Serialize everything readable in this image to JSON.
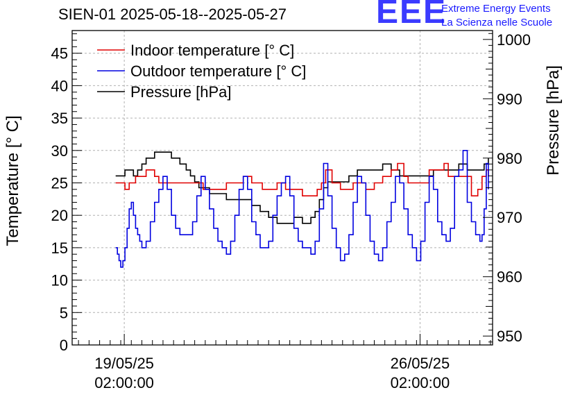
{
  "header": {
    "title": "SIEN-01 2025-05-18--2025-05-27",
    "logo_mark": "EEE",
    "logo_line1": "Extreme Energy Events",
    "logo_line2": "La Scienza nelle Scuole"
  },
  "colors": {
    "indoor": "#e00000",
    "outdoor": "#0000e0",
    "pressure": "#000000",
    "grid": "#b0b0b0",
    "logo": "#3b3bff"
  },
  "chart_data": {
    "type": "line",
    "title": "SIEN-01 2025-05-18--2025-05-27",
    "xlabel": "",
    "ylabel_left": "Temperature [° C]",
    "ylabel_right": "Pressure [hPa]",
    "x_unit": "days since 2025-05-18 00:00",
    "xlim": [
      -0.15,
      9.8
    ],
    "ylim_left": [
      0,
      48.5
    ],
    "ylim_right": [
      948.5,
      1001.5
    ],
    "left_ticks": [
      0,
      5,
      10,
      15,
      20,
      25,
      30,
      35,
      40,
      45
    ],
    "right_ticks": [
      950,
      960,
      970,
      980,
      990,
      1000
    ],
    "x_ticks": [
      {
        "x": 1.0833,
        "label_line1": "19/05/25",
        "label_line2": "02:00:00"
      },
      {
        "x": 8.0833,
        "label_line1": "26/05/25",
        "label_line2": "02:00:00"
      }
    ],
    "grid": true,
    "legend_position": "top-left",
    "series": [
      {
        "name": "Indoor temperature [° C]",
        "axis": "left",
        "x": [
          0.88,
          1.0,
          1.1,
          1.2,
          1.35,
          1.6,
          1.8,
          1.9,
          2.0,
          2.3,
          2.6,
          2.8,
          2.95,
          3.2,
          3.5,
          3.7,
          3.9,
          4.1,
          4.25,
          4.35,
          4.5,
          4.7,
          4.9,
          5.1,
          5.3,
          5.5,
          5.65,
          5.75,
          5.85,
          6.0,
          6.2,
          6.5,
          6.8,
          7.0,
          7.2,
          7.4,
          7.55,
          7.7,
          7.8,
          7.9,
          8.1,
          8.3,
          8.5,
          8.65,
          8.75,
          8.9,
          9.1,
          9.3,
          9.45,
          9.55,
          9.65,
          9.7
        ],
        "y": [
          25,
          25,
          24,
          25,
          26,
          27,
          26,
          25,
          25,
          25,
          25,
          25,
          24,
          24,
          25,
          25,
          26,
          25,
          25,
          24,
          24,
          25,
          24,
          24,
          23,
          23,
          24,
          25,
          27,
          25,
          24,
          25,
          24,
          25,
          26,
          27,
          28,
          26,
          25,
          25,
          25,
          27,
          27,
          28,
          26,
          26,
          26,
          23,
          24,
          26,
          27,
          26
        ]
      },
      {
        "name": "Outdoor temperature [° C]",
        "axis": "left",
        "x": [
          0.88,
          0.92,
          0.96,
          1.0,
          1.05,
          1.1,
          1.15,
          1.2,
          1.25,
          1.3,
          1.35,
          1.4,
          1.45,
          1.5,
          1.55,
          1.6,
          1.7,
          1.8,
          1.9,
          2.0,
          2.1,
          2.2,
          2.3,
          2.4,
          2.5,
          2.6,
          2.7,
          2.8,
          2.9,
          3.0,
          3.1,
          3.2,
          3.3,
          3.4,
          3.5,
          3.6,
          3.7,
          3.8,
          3.9,
          4.0,
          4.1,
          4.2,
          4.3,
          4.4,
          4.5,
          4.6,
          4.7,
          4.8,
          4.9,
          5.0,
          5.1,
          5.2,
          5.3,
          5.4,
          5.5,
          5.6,
          5.7,
          5.8,
          5.9,
          6.0,
          6.1,
          6.2,
          6.3,
          6.4,
          6.5,
          6.6,
          6.7,
          6.8,
          6.9,
          7.0,
          7.1,
          7.2,
          7.3,
          7.4,
          7.5,
          7.6,
          7.7,
          7.8,
          7.9,
          8.0,
          8.1,
          8.2,
          8.3,
          8.4,
          8.5,
          8.6,
          8.7,
          8.8,
          8.9,
          9.0,
          9.1,
          9.2,
          9.3,
          9.4,
          9.5,
          9.55,
          9.6,
          9.65,
          9.7
        ],
        "y": [
          15,
          14,
          13,
          12,
          13,
          15,
          18,
          21,
          22,
          20,
          18,
          17,
          16,
          15,
          15,
          16,
          19,
          22,
          24,
          26,
          24,
          20,
          18,
          17,
          17,
          17,
          19,
          23,
          26,
          24,
          21,
          18,
          16,
          15,
          14,
          16,
          20,
          24,
          26,
          24,
          19,
          17,
          15,
          15,
          16,
          20,
          23,
          25,
          26,
          23,
          18,
          16,
          15,
          15,
          14,
          16,
          21,
          28,
          23,
          18,
          15,
          13,
          14,
          17,
          22,
          26,
          25,
          20,
          16,
          14,
          13,
          15,
          19,
          22,
          26,
          25,
          21,
          17,
          15,
          13,
          16,
          22,
          26,
          24,
          19,
          17,
          16,
          18,
          26,
          27,
          30,
          22,
          19,
          17,
          16,
          17,
          21,
          28,
          24
        ]
      },
      {
        "name": "Pressure [hPa]",
        "axis": "right",
        "x": [
          0.88,
          1.0,
          1.1,
          1.2,
          1.3,
          1.4,
          1.5,
          1.6,
          1.8,
          2.0,
          2.2,
          2.4,
          2.55,
          2.65,
          2.75,
          2.85,
          3.0,
          3.1,
          3.3,
          3.5,
          3.7,
          3.9,
          4.1,
          4.3,
          4.5,
          4.7,
          4.9,
          5.1,
          5.3,
          5.5,
          5.6,
          5.7,
          5.8,
          5.9,
          6.0,
          6.2,
          6.4,
          6.6,
          6.8,
          7.0,
          7.2,
          7.4,
          7.6,
          7.8,
          8.0,
          8.2,
          8.4,
          8.6,
          8.8,
          9.0,
          9.2,
          9.4,
          9.6,
          9.7
        ],
        "y": [
          977,
          977,
          978,
          978,
          977,
          978,
          979,
          980,
          981,
          981,
          980,
          979,
          978,
          977,
          976,
          975,
          975,
          974,
          974,
          973,
          973,
          973,
          972,
          971,
          970,
          969,
          969,
          970,
          969,
          970,
          971,
          973,
          975,
          976,
          976,
          976,
          977,
          978,
          978,
          978,
          979,
          978,
          977,
          977,
          977,
          977,
          978,
          978,
          978,
          979,
          978,
          978,
          979,
          980
        ]
      }
    ]
  }
}
